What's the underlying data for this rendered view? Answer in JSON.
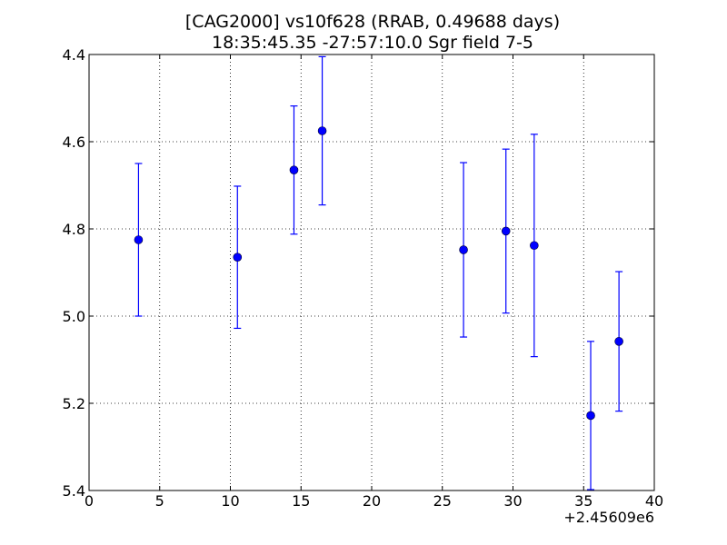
{
  "chart_data": {
    "type": "scatter",
    "title": "[CAG2000] vs10f628  (RRAB, 0.49688 days)",
    "subtitle": "18:35:45.35 -27:57:10.0 Sgr field 7-5",
    "xlabel": "",
    "ylabel": "",
    "x_offset_label": "+2.45609e6",
    "xlim": [
      0,
      40
    ],
    "ylim": [
      5.4,
      4.4
    ],
    "y_inverted": true,
    "grid": true,
    "xticks": [
      0,
      5,
      10,
      15,
      20,
      25,
      30,
      35,
      40
    ],
    "xtick_labels": [
      "0",
      "5",
      "10",
      "15",
      "20",
      "25",
      "30",
      "35",
      "40"
    ],
    "yticks": [
      4.4,
      4.6,
      4.8,
      5.0,
      5.2,
      5.4
    ],
    "ytick_labels": [
      "4.4",
      "4.6",
      "4.8",
      "5.0",
      "5.2",
      "5.4"
    ],
    "marker_color": "#0000ff",
    "errorbar_color": "#0000ff",
    "series": [
      {
        "points": [
          {
            "x": 3.5,
            "y": 4.825,
            "yerr": 0.175
          },
          {
            "x": 10.5,
            "y": 4.865,
            "yerr": 0.163
          },
          {
            "x": 14.5,
            "y": 4.665,
            "yerr": 0.147
          },
          {
            "x": 16.5,
            "y": 4.575,
            "yerr": 0.17
          },
          {
            "x": 26.5,
            "y": 4.848,
            "yerr": 0.2
          },
          {
            "x": 29.5,
            "y": 4.805,
            "yerr": 0.188
          },
          {
            "x": 31.5,
            "y": 4.838,
            "yerr": 0.255
          },
          {
            "x": 35.5,
            "y": 5.228,
            "yerr": 0.17
          },
          {
            "x": 37.5,
            "y": 5.058,
            "yerr": 0.16
          }
        ]
      }
    ]
  }
}
